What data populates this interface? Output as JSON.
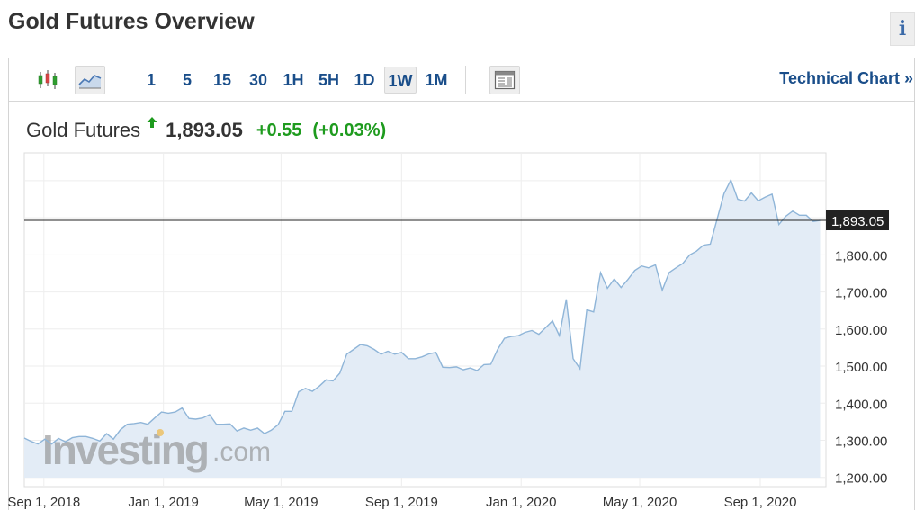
{
  "page": {
    "title": "Gold Futures Overview",
    "info_label": "i"
  },
  "toolbar": {
    "intervals": [
      "1",
      "5",
      "15",
      "30",
      "1H",
      "5H",
      "1D",
      "1W",
      "1M"
    ],
    "active_interval": "1W",
    "technical_chart_label": "Technical Chart »",
    "icons": [
      "candlestick-icon",
      "area-chart-icon",
      "page-layout-icon"
    ]
  },
  "quote": {
    "name": "Gold Futures",
    "direction_icon": "up-arrow-icon",
    "price": "1,893.05",
    "change": "+0.55",
    "change_pct": "(+0.03%)",
    "change_color": "#1e9b1e"
  },
  "chart_data": {
    "type": "area",
    "title": "",
    "xlabel": "",
    "ylabel": "",
    "x_tick_labels": [
      "Sep 1, 2018",
      "Jan 1, 2019",
      "May 1, 2019",
      "Sep 1, 2019",
      "Jan 1, 2020",
      "May 1, 2020",
      "Sep 1, 2020"
    ],
    "y_tick_labels": [
      "1,800.00",
      "1,700.00",
      "1,600.00",
      "1,500.00",
      "1,400.00",
      "1,300.00",
      "1,200.00"
    ],
    "y_ticks": [
      1800,
      1700,
      1600,
      1500,
      1400,
      1300,
      1200
    ],
    "ylim": [
      1175,
      2075
    ],
    "x_range": [
      "2018-08-12",
      "2020-11-07"
    ],
    "grid": true,
    "current_value": 1893.05,
    "current_value_label": "1,893.05",
    "line_color": "#8fb5d8",
    "fill_color": "#e3ecf6",
    "watermark": "Investing.com",
    "series": [
      {
        "x": [
          "2018-08-12",
          "2018-08-19",
          "2018-08-26",
          "2018-09-02",
          "2018-09-09",
          "2018-09-16",
          "2018-09-23",
          "2018-09-30",
          "2018-10-07",
          "2018-10-14",
          "2018-10-21",
          "2018-10-28",
          "2018-11-04",
          "2018-11-11",
          "2018-11-18",
          "2018-11-25",
          "2018-12-02",
          "2018-12-09",
          "2018-12-16",
          "2018-12-23",
          "2018-12-30",
          "2019-01-06",
          "2019-01-13",
          "2019-01-20",
          "2019-01-27",
          "2019-02-03",
          "2019-02-10",
          "2019-02-17",
          "2019-02-24",
          "2019-03-03",
          "2019-03-10",
          "2019-03-17",
          "2019-03-24",
          "2019-03-31",
          "2019-04-07",
          "2019-04-14",
          "2019-04-21",
          "2019-04-28",
          "2019-05-05",
          "2019-05-12",
          "2019-05-19",
          "2019-05-26",
          "2019-06-02",
          "2019-06-09",
          "2019-06-16",
          "2019-06-23",
          "2019-06-30",
          "2019-07-07",
          "2019-07-14",
          "2019-07-21",
          "2019-07-28",
          "2019-08-04",
          "2019-08-11",
          "2019-08-18",
          "2019-08-25",
          "2019-09-01",
          "2019-09-08",
          "2019-09-15",
          "2019-09-22",
          "2019-09-29",
          "2019-10-06",
          "2019-10-13",
          "2019-10-20",
          "2019-10-27",
          "2019-11-03",
          "2019-11-10",
          "2019-11-17",
          "2019-11-24",
          "2019-12-01",
          "2019-12-08",
          "2019-12-15",
          "2019-12-22",
          "2019-12-29",
          "2020-01-05",
          "2020-01-12",
          "2020-01-19",
          "2020-01-26",
          "2020-02-02",
          "2020-02-09",
          "2020-02-16",
          "2020-02-23",
          "2020-03-01",
          "2020-03-08",
          "2020-03-15",
          "2020-03-22",
          "2020-03-29",
          "2020-04-05",
          "2020-04-12",
          "2020-04-19",
          "2020-04-26",
          "2020-05-03",
          "2020-05-10",
          "2020-05-17",
          "2020-05-24",
          "2020-05-31",
          "2020-06-07",
          "2020-06-14",
          "2020-06-21",
          "2020-06-28",
          "2020-07-05",
          "2020-07-12",
          "2020-07-19",
          "2020-07-26",
          "2020-08-02",
          "2020-08-09",
          "2020-08-16",
          "2020-08-23",
          "2020-08-30",
          "2020-09-06",
          "2020-09-13",
          "2020-09-20",
          "2020-09-27",
          "2020-10-04",
          "2020-10-11",
          "2020-10-18",
          "2020-10-25",
          "2020-11-01"
        ],
        "values": [
          1306,
          1297,
          1290,
          1303,
          1290,
          1305,
          1296,
          1307,
          1310,
          1310,
          1305,
          1298,
          1318,
          1303,
          1328,
          1343,
          1345,
          1348,
          1343,
          1360,
          1376,
          1373,
          1376,
          1387,
          1359,
          1357,
          1360,
          1369,
          1343,
          1343,
          1344,
          1325,
          1333,
          1327,
          1333,
          1318,
          1327,
          1342,
          1378,
          1378,
          1431,
          1440,
          1432,
          1446,
          1463,
          1460,
          1481,
          1532,
          1545,
          1558,
          1555,
          1545,
          1532,
          1540,
          1532,
          1537,
          1520,
          1520,
          1525,
          1533,
          1537,
          1497,
          1496,
          1498,
          1490,
          1495,
          1488,
          1504,
          1505,
          1545,
          1575,
          1580,
          1582,
          1591,
          1596,
          1586,
          1604,
          1622,
          1582,
          1680,
          1520,
          1493,
          1652,
          1646,
          1752,
          1710,
          1735,
          1712,
          1734,
          1758,
          1770,
          1765,
          1773,
          1705,
          1752,
          1765,
          1777,
          1800,
          1810,
          1826,
          1829,
          1897,
          1965,
          2002,
          1950,
          1945,
          1967,
          1946,
          1956,
          1964,
          1882,
          1904,
          1918,
          1907,
          1907,
          1890,
          1893
        ]
      }
    ]
  }
}
